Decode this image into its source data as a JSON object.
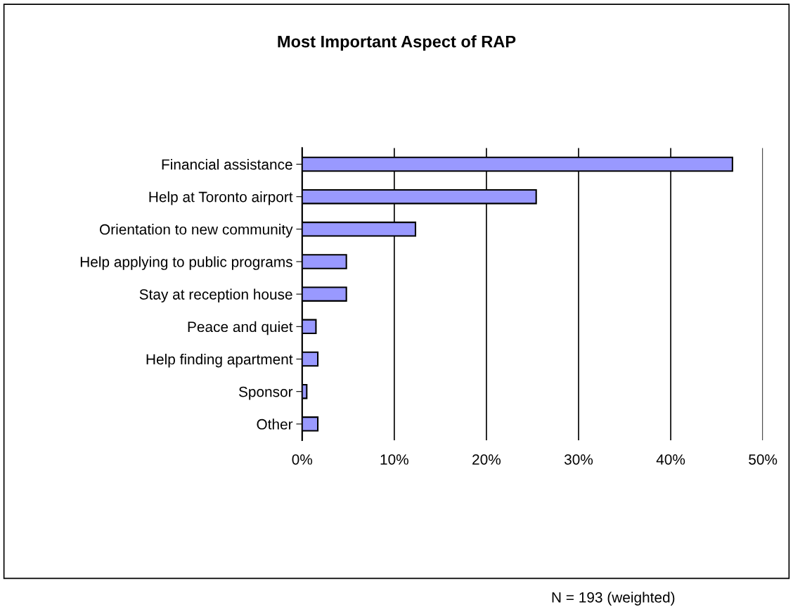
{
  "chart_data": {
    "type": "bar",
    "orientation": "horizontal",
    "title": "Most Important Aspect of RAP",
    "categories": [
      "Financial assistance",
      "Help at Toronto airport",
      "Orientation to new community",
      "Help applying to public programs",
      "Stay at reception house",
      "Peace and quiet",
      "Help finding apartment",
      "Sponsor",
      "Other"
    ],
    "values": [
      46.7,
      25.4,
      12.3,
      4.8,
      4.8,
      1.5,
      1.7,
      0.5,
      1.7
    ],
    "color": "#9999ff",
    "xlim": [
      0,
      50
    ],
    "xticks": [
      {
        "value": 0,
        "label": "0%"
      },
      {
        "value": 10,
        "label": "10%"
      },
      {
        "value": 20,
        "label": "20%"
      },
      {
        "value": 30,
        "label": "30%"
      },
      {
        "value": 40,
        "label": "40%"
      },
      {
        "value": 50,
        "label": "50%"
      }
    ],
    "grid": "x",
    "annotations": [
      "N = 193 (weighted)"
    ]
  }
}
